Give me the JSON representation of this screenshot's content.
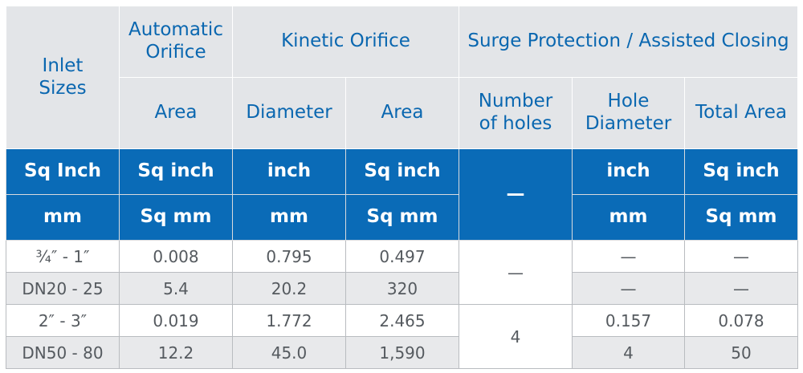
{
  "header": {
    "inlet_sizes": "Inlet\nSizes",
    "automatic_orifice": "Automatic\nOrifice",
    "kinetic_orifice": "Kinetic Orifice",
    "surge_protection": "Surge Protection / Assisted Closing",
    "area": "Area",
    "diameter": "Diameter",
    "area_kinetic": "Area",
    "number_of_holes": "Number\nof holes",
    "hole_diameter": "Hole\nDiameter",
    "total_area": "Total Area"
  },
  "units": {
    "imperial": [
      "Sq Inch",
      "Sq inch",
      "inch",
      "Sq inch",
      "inch",
      "Sq inch"
    ],
    "metric": [
      "mm",
      "Sq mm",
      "mm",
      "Sq mm",
      "mm",
      "Sq mm"
    ],
    "holes_dash": "—"
  },
  "rows": [
    {
      "inlet": "¾″ - 1″",
      "auto_area": "0.008",
      "kin_diam": "0.795",
      "kin_area": "0.497",
      "hole_diam": "—",
      "total_area": "—"
    },
    {
      "inlet": "DN20 - 25",
      "auto_area": "5.4",
      "kin_diam": "20.2",
      "kin_area": "320",
      "hole_diam": "—",
      "total_area": "—"
    },
    {
      "inlet": "2″ - 3″",
      "auto_area": "0.019",
      "kin_diam": "1.772",
      "kin_area": "2.465",
      "hole_diam": "0.157",
      "total_area": "0.078"
    },
    {
      "inlet": "DN50 - 80",
      "auto_area": "12.2",
      "kin_diam": "45.0",
      "kin_area": "1,590",
      "hole_diam": "4",
      "total_area": "50"
    }
  ],
  "holes_groups": [
    "—",
    "4"
  ]
}
